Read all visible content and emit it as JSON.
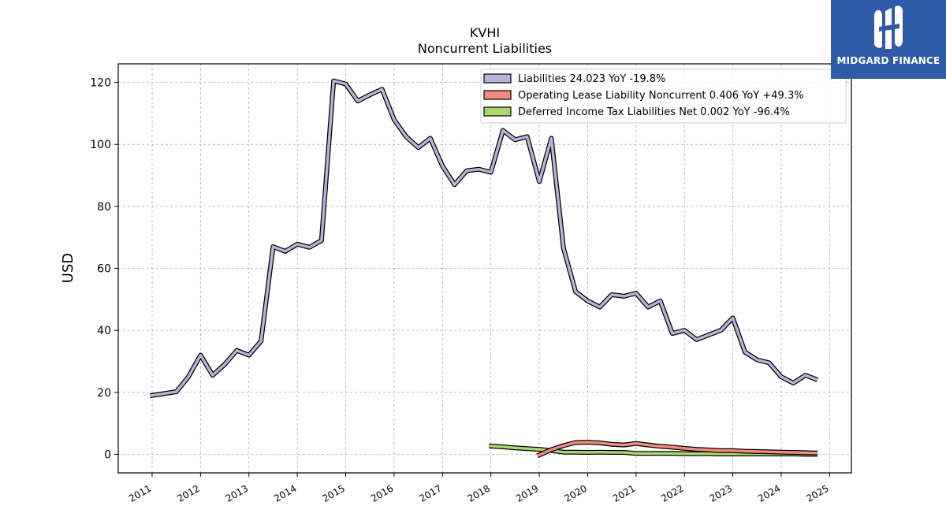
{
  "brand": {
    "name": "MIDGARD FINANCE",
    "logo_color": "#2f5aa8"
  },
  "chart_data": {
    "type": "line",
    "title": "KVHI",
    "subtitle": "Noncurrent  Liabilities",
    "xlabel": "",
    "ylabel": "USD",
    "xlim": [
      2010.3,
      2025.45
    ],
    "ylim": [
      -6,
      126
    ],
    "yticks": [
      0,
      20,
      40,
      60,
      80,
      100,
      120
    ],
    "xticks": [
      "2011",
      "2012",
      "2013",
      "2014",
      "2015",
      "2016",
      "2017",
      "2018",
      "2019",
      "2020",
      "2021",
      "2022",
      "2023",
      "2024",
      "2025"
    ],
    "grid": true,
    "legend_position": "top-right",
    "series": [
      {
        "name": "Liabilities",
        "legend": "Liabilities  24.023 YoY -19.8%",
        "color": "#b7b4d8",
        "x": [
          2010.96,
          2011.5,
          2011.75,
          2012.0,
          2012.25,
          2012.5,
          2012.75,
          2013.0,
          2013.25,
          2013.5,
          2013.75,
          2014.0,
          2014.25,
          2014.5,
          2014.75,
          2015.0,
          2015.25,
          2015.5,
          2015.75,
          2016.0,
          2016.25,
          2016.5,
          2016.75,
          2017.0,
          2017.25,
          2017.5,
          2017.75,
          2018.0,
          2018.25,
          2018.5,
          2018.75,
          2019.0,
          2019.25,
          2019.5,
          2019.75,
          2020.0,
          2020.25,
          2020.5,
          2020.75,
          2021.0,
          2021.25,
          2021.5,
          2021.75,
          2022.0,
          2022.25,
          2022.5,
          2022.75,
          2023.0,
          2023.25,
          2023.5,
          2023.75,
          2024.0,
          2024.25,
          2024.5,
          2024.75
        ],
        "y": [
          18.9,
          20.2,
          25.0,
          32.0,
          25.5,
          29.0,
          33.5,
          32.0,
          36.5,
          67.0,
          65.5,
          67.8,
          66.8,
          69.0,
          120.5,
          119.5,
          114.0,
          116.0,
          117.8,
          108.0,
          102.5,
          99.0,
          102.0,
          93.0,
          87.0,
          91.5,
          92.0,
          91.0,
          104.5,
          101.5,
          102.5,
          88.0,
          102.0,
          66.5,
          52.5,
          49.5,
          47.5,
          51.5,
          51.0,
          52.0,
          47.5,
          49.5,
          39.0,
          40.0,
          37.0,
          38.5,
          40.0,
          44.0,
          33.0,
          30.5,
          29.5,
          25.0,
          23.0,
          25.5,
          24.0
        ]
      },
      {
        "name": "Operating Lease Liability Noncurrent",
        "legend": "Operating Lease Liability Noncurrent  0.406 YoY +49.3%",
        "color": "#f28b7e",
        "x": [
          2018.96,
          2019.25,
          2019.5,
          2019.75,
          2020.0,
          2020.25,
          2020.5,
          2020.75,
          2021.0,
          2021.25,
          2021.5,
          2021.75,
          2022.0,
          2022.25,
          2022.5,
          2022.75,
          2023.0,
          2023.25,
          2023.5,
          2023.75,
          2024.0,
          2024.25,
          2024.5,
          2024.75
        ],
        "y": [
          -0.5,
          1.5,
          2.8,
          3.8,
          3.9,
          3.7,
          3.2,
          3.0,
          3.5,
          3.0,
          2.6,
          2.3,
          1.9,
          1.6,
          1.4,
          1.2,
          1.2,
          1.0,
          0.9,
          0.8,
          0.7,
          0.6,
          0.5,
          0.4
        ]
      },
      {
        "name": "Deferred Income Tax Liabilities Net",
        "legend": "Deferred Income Tax Liabilities Net  0.002 YoY -96.4%",
        "color": "#a9d86e",
        "x": [
          2017.96,
          2018.25,
          2018.5,
          2018.75,
          2019.0,
          2019.25,
          2019.5,
          2019.75,
          2020.0,
          2020.25,
          2020.5,
          2020.75,
          2021.0,
          2021.25,
          2021.5,
          2021.75,
          2022.0,
          2022.25,
          2022.5,
          2022.75,
          2023.0,
          2023.25,
          2023.5,
          2023.75,
          2024.0,
          2024.25,
          2024.5,
          2024.75
        ],
        "y": [
          2.7,
          2.4,
          2.1,
          1.8,
          1.6,
          1.2,
          0.7,
          0.7,
          0.6,
          0.7,
          0.6,
          0.6,
          0.3,
          0.3,
          0.3,
          0.3,
          0.2,
          0.2,
          0.2,
          0.1,
          0.1,
          0.1,
          0.1,
          0.1,
          0.1,
          0.1,
          0.0,
          0.0
        ]
      }
    ]
  }
}
